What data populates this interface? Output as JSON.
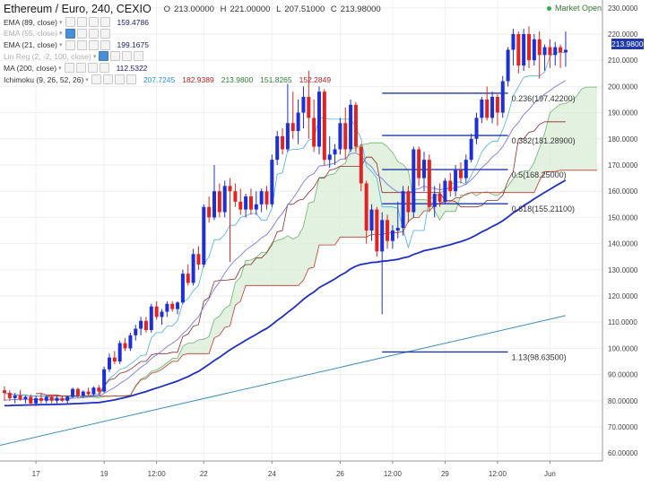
{
  "header": {
    "title": "Ethereum / Euro, 240, CEXIO",
    "ohlc": {
      "o_label": "O",
      "o": "213.00000",
      "h_label": "H",
      "h": "221.00000",
      "l_label": "L",
      "l": "207.51000",
      "c_label": "C",
      "c": "213.98000"
    },
    "market_status": "Market Open"
  },
  "indicators": [
    {
      "label": "EMA (89, close)",
      "value": "159.4786",
      "faded": false,
      "color": "#1a1a6e"
    },
    {
      "label": "EMA (55, close)",
      "value": "",
      "faded": true,
      "color": "#1a1a6e"
    },
    {
      "label": "EMA (21, close)",
      "value": "199.1675",
      "faded": false,
      "color": "#1a1a6e"
    },
    {
      "label": "Lin Reg (2, -2, 100, close)",
      "value": "",
      "faded": true,
      "color": "#1a1a6e"
    },
    {
      "label": "MA (200, close)",
      "value": "112.5322",
      "faded": false,
      "color": "#1a1a6e"
    },
    {
      "label": "Ichimoku (9, 26, 52, 26)",
      "value": "",
      "faded": false,
      "color": "#1a1a6e",
      "values": [
        {
          "v": "207.7245",
          "color": "#2a8fd8"
        },
        {
          "v": "182.9389",
          "color": "#b22222"
        },
        {
          "v": "213.9800",
          "color": "#2e7d32"
        },
        {
          "v": "151.8265",
          "color": "#2e7d32"
        },
        {
          "v": "152.2849",
          "color": "#b22222"
        }
      ]
    }
  ],
  "colors": {
    "up": "#1e2fd6",
    "down": "#e02424",
    "fib": "#1f3aa8",
    "ema21": "#7a7ae0",
    "ema89": "#1f2fc0",
    "ma200": "#3f8fbf",
    "tenkan": "#4ab0e0",
    "kijun": "#8b2a2a",
    "cloud": "#d9ecd6",
    "spanA": "#6bb46b",
    "spanB": "#c0392b"
  },
  "chart_data": {
    "type": "candlestick",
    "title": "Ethereum / Euro, 240, CEXIO",
    "ylim": [
      57,
      233
    ],
    "y_ticks": [
      60,
      70,
      80,
      90,
      100,
      110,
      120,
      130,
      140,
      150,
      160,
      170,
      180,
      190,
      200,
      210,
      220,
      230
    ],
    "y_tick_labels": [
      "60.00000",
      "70.00000",
      "80.00000",
      "90.00000",
      "100.0000",
      "110.0000",
      "120.0000",
      "130.0000",
      "140.0000",
      "150.0000",
      "160.0000",
      "170.0000",
      "180.0000",
      "190.0000",
      "200.0000",
      "210.0000",
      "220.0000",
      "230.0000"
    ],
    "x_ticks": [
      {
        "label": "17",
        "bar": 6
      },
      {
        "label": "19",
        "bar": 19
      },
      {
        "label": "12:00",
        "bar": 29
      },
      {
        "label": "22",
        "bar": 38
      },
      {
        "label": "24",
        "bar": 51
      },
      {
        "label": "26",
        "bar": 64
      },
      {
        "label": "12:00",
        "bar": 74
      },
      {
        "label": "29",
        "bar": 84
      },
      {
        "label": "12:00",
        "bar": 94
      },
      {
        "label": "Jun",
        "bar": 104
      }
    ],
    "last_price": "213.98000",
    "candles": [
      {
        "o": 84,
        "h": 85.5,
        "l": 80,
        "c": 83
      },
      {
        "o": 83,
        "h": 84,
        "l": 80,
        "c": 81
      },
      {
        "o": 81,
        "h": 83,
        "l": 79,
        "c": 82
      },
      {
        "o": 82,
        "h": 84,
        "l": 80,
        "c": 80.5
      },
      {
        "o": 80.5,
        "h": 82,
        "l": 79,
        "c": 81.5
      },
      {
        "o": 81.5,
        "h": 82.5,
        "l": 78,
        "c": 79
      },
      {
        "o": 79,
        "h": 82,
        "l": 78,
        "c": 81
      },
      {
        "o": 81,
        "h": 83,
        "l": 79,
        "c": 80
      },
      {
        "o": 80,
        "h": 82,
        "l": 79,
        "c": 81.5
      },
      {
        "o": 81.5,
        "h": 82,
        "l": 79,
        "c": 80
      },
      {
        "o": 80,
        "h": 82,
        "l": 79,
        "c": 81
      },
      {
        "o": 81,
        "h": 82,
        "l": 79.5,
        "c": 80
      },
      {
        "o": 80,
        "h": 82,
        "l": 79,
        "c": 81.5
      },
      {
        "o": 81.5,
        "h": 85,
        "l": 81,
        "c": 84.5
      },
      {
        "o": 84.5,
        "h": 85,
        "l": 81,
        "c": 82
      },
      {
        "o": 82,
        "h": 84,
        "l": 81,
        "c": 83.5
      },
      {
        "o": 83.5,
        "h": 85,
        "l": 82,
        "c": 82.5
      },
      {
        "o": 82.5,
        "h": 85.5,
        "l": 82,
        "c": 85
      },
      {
        "o": 85,
        "h": 86,
        "l": 82.5,
        "c": 83.5
      },
      {
        "o": 83.5,
        "h": 93,
        "l": 83,
        "c": 92
      },
      {
        "o": 92,
        "h": 98,
        "l": 91,
        "c": 96.5
      },
      {
        "o": 96.5,
        "h": 99,
        "l": 94,
        "c": 95
      },
      {
        "o": 95,
        "h": 103,
        "l": 94,
        "c": 102
      },
      {
        "o": 102,
        "h": 104,
        "l": 99,
        "c": 100
      },
      {
        "o": 100,
        "h": 106,
        "l": 99,
        "c": 105
      },
      {
        "o": 105,
        "h": 109,
        "l": 103,
        "c": 107.5
      },
      {
        "o": 107.5,
        "h": 112,
        "l": 105,
        "c": 110.5
      },
      {
        "o": 110.5,
        "h": 112,
        "l": 106,
        "c": 107
      },
      {
        "o": 107,
        "h": 117,
        "l": 106,
        "c": 116
      },
      {
        "o": 116,
        "h": 118,
        "l": 111,
        "c": 112
      },
      {
        "o": 112,
        "h": 115,
        "l": 109,
        "c": 114
      },
      {
        "o": 114,
        "h": 118,
        "l": 112,
        "c": 117
      },
      {
        "o": 117,
        "h": 118,
        "l": 114,
        "c": 115
      },
      {
        "o": 115,
        "h": 118,
        "l": 113,
        "c": 117.5
      },
      {
        "o": 117.5,
        "h": 130,
        "l": 117,
        "c": 128.5
      },
      {
        "o": 128.5,
        "h": 132,
        "l": 124,
        "c": 125
      },
      {
        "o": 125,
        "h": 138,
        "l": 124,
        "c": 136
      },
      {
        "o": 136,
        "h": 139,
        "l": 130,
        "c": 132
      },
      {
        "o": 132,
        "h": 155,
        "l": 131,
        "c": 154
      },
      {
        "o": 154,
        "h": 158,
        "l": 148,
        "c": 150
      },
      {
        "o": 150,
        "h": 170,
        "l": 149,
        "c": 160
      },
      {
        "o": 160,
        "h": 163,
        "l": 150,
        "c": 152
      },
      {
        "o": 152,
        "h": 164,
        "l": 150,
        "c": 162
      },
      {
        "o": 162,
        "h": 165,
        "l": 133,
        "c": 160
      },
      {
        "o": 160,
        "h": 163,
        "l": 154,
        "c": 156
      },
      {
        "o": 156,
        "h": 161,
        "l": 151,
        "c": 153
      },
      {
        "o": 153,
        "h": 159,
        "l": 150,
        "c": 158
      },
      {
        "o": 158,
        "h": 161,
        "l": 151,
        "c": 153
      },
      {
        "o": 153,
        "h": 160,
        "l": 151,
        "c": 155
      },
      {
        "o": 155,
        "h": 161,
        "l": 152,
        "c": 160
      },
      {
        "o": 160,
        "h": 162,
        "l": 153,
        "c": 155
      },
      {
        "o": 155,
        "h": 174,
        "l": 154,
        "c": 172
      },
      {
        "o": 172,
        "h": 183,
        "l": 170,
        "c": 181
      },
      {
        "o": 181,
        "h": 184,
        "l": 174,
        "c": 176
      },
      {
        "o": 176,
        "h": 201,
        "l": 175,
        "c": 186
      },
      {
        "o": 186,
        "h": 198,
        "l": 180,
        "c": 183
      },
      {
        "o": 183,
        "h": 195,
        "l": 178,
        "c": 190
      },
      {
        "o": 190,
        "h": 200,
        "l": 184,
        "c": 196
      },
      {
        "o": 196,
        "h": 206,
        "l": 180,
        "c": 188
      },
      {
        "o": 188,
        "h": 195,
        "l": 175,
        "c": 177
      },
      {
        "o": 177,
        "h": 200,
        "l": 174,
        "c": 198
      },
      {
        "o": 198,
        "h": 199,
        "l": 170,
        "c": 172
      },
      {
        "o": 172,
        "h": 181,
        "l": 169,
        "c": 174
      },
      {
        "o": 174,
        "h": 178,
        "l": 170,
        "c": 176
      },
      {
        "o": 176,
        "h": 188,
        "l": 174,
        "c": 186
      },
      {
        "o": 186,
        "h": 192,
        "l": 172,
        "c": 176
      },
      {
        "o": 176,
        "h": 195,
        "l": 175,
        "c": 193
      },
      {
        "o": 193,
        "h": 194,
        "l": 175,
        "c": 177
      },
      {
        "o": 177,
        "h": 178,
        "l": 160,
        "c": 163
      },
      {
        "o": 163,
        "h": 164,
        "l": 140,
        "c": 145
      },
      {
        "o": 145,
        "h": 155,
        "l": 141,
        "c": 153
      },
      {
        "o": 153,
        "h": 154,
        "l": 135,
        "c": 137
      },
      {
        "o": 137,
        "h": 152,
        "l": 113,
        "c": 149
      },
      {
        "o": 149,
        "h": 151,
        "l": 138,
        "c": 141
      },
      {
        "o": 141,
        "h": 147,
        "l": 138,
        "c": 145
      },
      {
        "o": 145,
        "h": 156,
        "l": 142,
        "c": 146
      },
      {
        "o": 146,
        "h": 162,
        "l": 143,
        "c": 160
      },
      {
        "o": 160,
        "h": 162,
        "l": 148,
        "c": 152
      },
      {
        "o": 152,
        "h": 177,
        "l": 150,
        "c": 176
      },
      {
        "o": 176,
        "h": 177,
        "l": 162,
        "c": 165
      },
      {
        "o": 165,
        "h": 175,
        "l": 160,
        "c": 172
      },
      {
        "o": 172,
        "h": 174,
        "l": 152,
        "c": 154
      },
      {
        "o": 154,
        "h": 162,
        "l": 150,
        "c": 159
      },
      {
        "o": 159,
        "h": 163,
        "l": 154,
        "c": 156
      },
      {
        "o": 156,
        "h": 165,
        "l": 155,
        "c": 164
      },
      {
        "o": 164,
        "h": 167,
        "l": 158,
        "c": 160
      },
      {
        "o": 160,
        "h": 170,
        "l": 158,
        "c": 168
      },
      {
        "o": 168,
        "h": 171,
        "l": 163,
        "c": 165
      },
      {
        "o": 165,
        "h": 174,
        "l": 163,
        "c": 172
      },
      {
        "o": 172,
        "h": 182,
        "l": 171,
        "c": 180
      },
      {
        "o": 180,
        "h": 190,
        "l": 178,
        "c": 188
      },
      {
        "o": 188,
        "h": 196,
        "l": 186,
        "c": 195
      },
      {
        "o": 195,
        "h": 200,
        "l": 187,
        "c": 188
      },
      {
        "o": 188,
        "h": 198,
        "l": 186,
        "c": 196
      },
      {
        "o": 196,
        "h": 197,
        "l": 185,
        "c": 190
      },
      {
        "o": 190,
        "h": 204,
        "l": 188,
        "c": 202
      },
      {
        "o": 202,
        "h": 215,
        "l": 200,
        "c": 214
      },
      {
        "o": 214,
        "h": 222,
        "l": 208,
        "c": 220
      },
      {
        "o": 220,
        "h": 221,
        "l": 205,
        "c": 208
      },
      {
        "o": 208,
        "h": 222,
        "l": 206,
        "c": 220
      },
      {
        "o": 220,
        "h": 223,
        "l": 207,
        "c": 210
      },
      {
        "o": 210,
        "h": 220,
        "l": 208,
        "c": 218
      },
      {
        "o": 218,
        "h": 221,
        "l": 203,
        "c": 212
      },
      {
        "o": 212,
        "h": 216,
        "l": 206,
        "c": 215
      },
      {
        "o": 215,
        "h": 218,
        "l": 207,
        "c": 212
      },
      {
        "o": 212,
        "h": 217,
        "l": 208,
        "c": 215
      },
      {
        "o": 215,
        "h": 216,
        "l": 207,
        "c": 213
      },
      {
        "o": 213,
        "h": 221,
        "l": 207.51,
        "c": 213.98
      }
    ],
    "fibonacci": {
      "start_bar": 72,
      "end_bar": 96,
      "levels": [
        {
          "label": "0.236(197.42200)",
          "value": 197.422
        },
        {
          "label": "0.382(181.28900)",
          "value": 181.289
        },
        {
          "label": "0.5(168.25000)",
          "value": 168.25
        },
        {
          "label": "0.618(155.21100)",
          "value": 155.211
        },
        {
          "label": "1.13(98.63500)",
          "value": 98.635
        }
      ]
    },
    "series": [
      {
        "name": "EMA (89, close)",
        "kind": "ema",
        "period": 89
      },
      {
        "name": "EMA (21, close)",
        "kind": "ema",
        "period": 21
      },
      {
        "name": "MA (200, close)",
        "kind": "ma",
        "start": 63,
        "end": 112.5
      },
      {
        "name": "Ichimoku (9, 26, 52, 26)",
        "kind": "ichimoku"
      }
    ]
  }
}
